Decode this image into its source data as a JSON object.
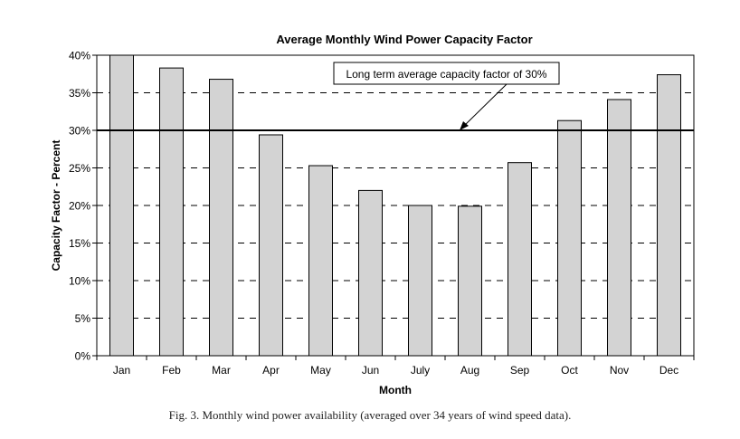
{
  "chart_data": {
    "type": "bar",
    "title": "Average Monthly Wind Power Capacity Factor",
    "xlabel": "Month",
    "ylabel": "Capacity Factor - Percent",
    "categories": [
      "Jan",
      "Feb",
      "Mar",
      "Apr",
      "May",
      "Jun",
      "July",
      "Aug",
      "Sep",
      "Oct",
      "Nov",
      "Dec"
    ],
    "values": [
      40.0,
      38.3,
      36.8,
      29.4,
      25.3,
      22.0,
      20.0,
      19.9,
      25.7,
      31.3,
      34.1,
      37.4
    ],
    "ylim": [
      0,
      40
    ],
    "yticks": [
      0,
      5,
      10,
      15,
      20,
      25,
      30,
      35,
      40
    ],
    "ytick_labels": [
      "0%",
      "5%",
      "10%",
      "15%",
      "20%",
      "25%",
      "30%",
      "35%",
      "40%"
    ],
    "grid": "horizontal dashed",
    "reference_line": {
      "value": 30
    },
    "annotation": {
      "text": "Long term average capacity factor of 30%"
    },
    "colors": {
      "bar_fill": "#d3d3d3",
      "bar_stroke": "#000000",
      "grid": "#000000"
    }
  },
  "caption": "Fig. 3.  Monthly wind power availability (averaged over 34 years of wind speed data)."
}
